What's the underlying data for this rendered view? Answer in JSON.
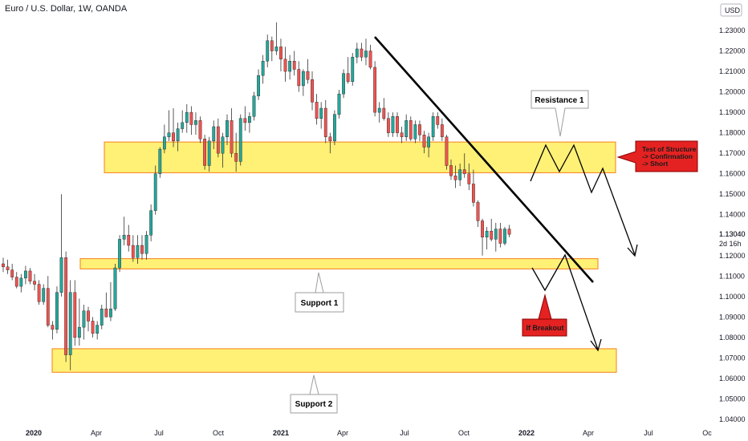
{
  "header": {
    "title": "Euro / U.S. Dollar, 1W, OANDA",
    "currency": "USD"
  },
  "chart_data": {
    "type": "candlestick",
    "title": "Euro / U.S. Dollar, 1W, OANDA",
    "y_ticks": [
      "1.23000",
      "1.22000",
      "1.21000",
      "1.20000",
      "1.19000",
      "1.18000",
      "1.17000",
      "1.16000",
      "1.15000",
      "1.14000",
      "1.13040",
      "1.12000",
      "1.11000",
      "1.10000",
      "1.09000",
      "1.08000",
      "1.07000",
      "1.06000",
      "1.05000",
      "1.04000"
    ],
    "y_tick_values": [
      1.23,
      1.22,
      1.21,
      1.2,
      1.19,
      1.18,
      1.17,
      1.16,
      1.15,
      1.14,
      1.1304,
      1.12,
      1.11,
      1.1,
      1.09,
      1.08,
      1.07,
      1.06,
      1.05,
      1.04
    ],
    "x_ticks": [
      {
        "label": "2020",
        "bold": true
      },
      {
        "label": "Apr",
        "bold": false
      },
      {
        "label": "Jul",
        "bold": false
      },
      {
        "label": "Oct",
        "bold": false
      },
      {
        "label": "2021",
        "bold": true
      },
      {
        "label": "Apr",
        "bold": false
      },
      {
        "label": "Jul",
        "bold": false
      },
      {
        "label": "Oct",
        "bold": false
      },
      {
        "label": "2022",
        "bold": true
      },
      {
        "label": "Apr",
        "bold": false
      },
      {
        "label": "Jul",
        "bold": false
      },
      {
        "label": "Oc",
        "bold": false
      }
    ],
    "ylim": [
      1.04,
      1.236
    ],
    "last_price": "1.13040",
    "countdown": "2d 16h",
    "zones": [
      {
        "name": "resistance-zone",
        "y_top": 1.1755,
        "y_bottom": 1.1605
      },
      {
        "name": "support-1-zone",
        "y_top": 1.1185,
        "y_bottom": 1.1135
      },
      {
        "name": "support-2-zone",
        "y_top": 1.0745,
        "y_bottom": 1.063
      }
    ],
    "annotations": {
      "resistance_1": "Resistance 1",
      "support_1": "Support 1",
      "support_2": "Support 2",
      "test_structure": [
        "Test of Structure",
        "-> Confirmation",
        "-> Short"
      ],
      "if_breakout": "If Breakout"
    },
    "colors": {
      "up": "#26a69a",
      "down": "#ef5350",
      "zone_fill": "#fff176",
      "zone_border": "#f57f17",
      "trendline": "#000000",
      "callout_red": "#e52222"
    },
    "candles": [
      [
        1.116,
        1.119,
        1.112,
        1.1145
      ],
      [
        1.1145,
        1.118,
        1.111,
        1.113
      ],
      [
        1.113,
        1.116,
        1.108,
        1.1095
      ],
      [
        1.1095,
        1.112,
        1.104,
        1.105
      ],
      [
        1.105,
        1.111,
        1.102,
        1.109
      ],
      [
        1.109,
        1.115,
        1.106,
        1.1125
      ],
      [
        1.1125,
        1.114,
        1.106,
        1.1075
      ],
      [
        1.1075,
        1.111,
        1.103,
        1.106
      ],
      [
        1.106,
        1.108,
        1.096,
        1.0975
      ],
      [
        1.0975,
        1.106,
        1.096,
        1.104
      ],
      [
        1.104,
        1.11,
        1.085,
        1.086
      ],
      [
        1.086,
        1.088,
        1.079,
        1.084
      ],
      [
        1.084,
        1.105,
        1.082,
        1.102
      ],
      [
        1.102,
        1.15,
        1.1,
        1.119
      ],
      [
        1.119,
        1.122,
        1.068,
        1.0715
      ],
      [
        1.0715,
        1.108,
        1.064,
        1.102
      ],
      [
        1.102,
        1.108,
        1.076,
        1.08
      ],
      [
        1.08,
        1.099,
        1.076,
        1.085
      ],
      [
        1.085,
        1.096,
        1.079,
        1.093
      ],
      [
        1.093,
        1.095,
        1.083,
        1.088
      ],
      [
        1.088,
        1.09,
        1.08,
        1.082
      ],
      [
        1.082,
        1.088,
        1.079,
        1.086
      ],
      [
        1.086,
        1.096,
        1.084,
        1.094
      ],
      [
        1.094,
        1.102,
        1.09,
        1.09
      ],
      [
        1.09,
        1.107,
        1.088,
        1.094
      ],
      [
        1.094,
        1.116,
        1.093,
        1.114
      ],
      [
        1.114,
        1.13,
        1.112,
        1.128
      ],
      [
        1.128,
        1.139,
        1.125,
        1.13
      ],
      [
        1.13,
        1.135,
        1.122,
        1.125
      ],
      [
        1.125,
        1.13,
        1.117,
        1.119
      ],
      [
        1.119,
        1.13,
        1.116,
        1.125
      ],
      [
        1.125,
        1.13,
        1.118,
        1.121
      ],
      [
        1.121,
        1.132,
        1.118,
        1.13
      ],
      [
        1.13,
        1.145,
        1.127,
        1.142
      ],
      [
        1.142,
        1.164,
        1.14,
        1.16
      ],
      [
        1.16,
        1.173,
        1.158,
        1.172
      ],
      [
        1.172,
        1.184,
        1.17,
        1.178
      ],
      [
        1.178,
        1.191,
        1.176,
        1.18
      ],
      [
        1.18,
        1.192,
        1.173,
        1.176
      ],
      [
        1.176,
        1.185,
        1.171,
        1.182
      ],
      [
        1.182,
        1.191,
        1.18,
        1.185
      ],
      [
        1.185,
        1.194,
        1.18,
        1.19
      ],
      [
        1.19,
        1.193,
        1.179,
        1.184
      ],
      [
        1.184,
        1.19,
        1.179,
        1.186
      ],
      [
        1.186,
        1.188,
        1.175,
        1.177
      ],
      [
        1.177,
        1.179,
        1.162,
        1.164
      ],
      [
        1.164,
        1.178,
        1.161,
        1.176
      ],
      [
        1.176,
        1.186,
        1.172,
        1.183
      ],
      [
        1.183,
        1.187,
        1.168,
        1.17
      ],
      [
        1.17,
        1.18,
        1.163,
        1.178
      ],
      [
        1.178,
        1.189,
        1.174,
        1.186
      ],
      [
        1.186,
        1.192,
        1.168,
        1.17
      ],
      [
        1.17,
        1.18,
        1.161,
        1.166
      ],
      [
        1.166,
        1.189,
        1.164,
        1.187
      ],
      [
        1.187,
        1.193,
        1.181,
        1.185
      ],
      [
        1.185,
        1.19,
        1.18,
        1.188
      ],
      [
        1.188,
        1.2,
        1.186,
        1.198
      ],
      [
        1.198,
        1.211,
        1.196,
        1.208
      ],
      [
        1.208,
        1.218,
        1.204,
        1.215
      ],
      [
        1.215,
        1.228,
        1.212,
        1.225
      ],
      [
        1.225,
        1.227,
        1.215,
        1.22
      ],
      [
        1.22,
        1.234,
        1.218,
        1.222
      ],
      [
        1.222,
        1.226,
        1.21,
        1.216
      ],
      [
        1.216,
        1.222,
        1.205,
        1.21
      ],
      [
        1.21,
        1.218,
        1.206,
        1.215
      ],
      [
        1.215,
        1.22,
        1.208,
        1.211
      ],
      [
        1.211,
        1.215,
        1.2,
        1.203
      ],
      [
        1.203,
        1.211,
        1.198,
        1.21
      ],
      [
        1.21,
        1.216,
        1.204,
        1.206
      ],
      [
        1.206,
        1.21,
        1.191,
        1.195
      ],
      [
        1.195,
        1.199,
        1.184,
        1.187
      ],
      [
        1.187,
        1.195,
        1.182,
        1.192
      ],
      [
        1.192,
        1.196,
        1.175,
        1.178
      ],
      [
        1.178,
        1.18,
        1.17,
        1.176
      ],
      [
        1.176,
        1.191,
        1.174,
        1.189
      ],
      [
        1.189,
        1.201,
        1.187,
        1.199
      ],
      [
        1.199,
        1.211,
        1.197,
        1.209
      ],
      [
        1.209,
        1.217,
        1.204,
        1.205
      ],
      [
        1.205,
        1.219,
        1.203,
        1.217
      ],
      [
        1.217,
        1.224,
        1.214,
        1.221
      ],
      [
        1.221,
        1.224,
        1.215,
        1.217
      ],
      [
        1.217,
        1.226,
        1.213,
        1.22
      ],
      [
        1.22,
        1.223,
        1.211,
        1.212
      ],
      [
        1.212,
        1.215,
        1.188,
        1.19
      ],
      [
        1.19,
        1.195,
        1.185,
        1.192
      ],
      [
        1.192,
        1.197,
        1.186,
        1.187
      ],
      [
        1.187,
        1.19,
        1.178,
        1.18
      ],
      [
        1.18,
        1.19,
        1.178,
        1.188
      ],
      [
        1.188,
        1.19,
        1.178,
        1.18
      ],
      [
        1.18,
        1.183,
        1.175,
        1.178
      ],
      [
        1.178,
        1.189,
        1.176,
        1.186
      ],
      [
        1.186,
        1.188,
        1.176,
        1.177
      ],
      [
        1.177,
        1.186,
        1.175,
        1.184
      ],
      [
        1.184,
        1.186,
        1.176,
        1.179
      ],
      [
        1.179,
        1.181,
        1.17,
        1.173
      ],
      [
        1.173,
        1.18,
        1.168,
        1.178
      ],
      [
        1.178,
        1.19,
        1.176,
        1.188
      ],
      [
        1.188,
        1.19,
        1.182,
        1.184
      ],
      [
        1.184,
        1.187,
        1.176,
        1.178
      ],
      [
        1.178,
        1.179,
        1.162,
        1.164
      ],
      [
        1.164,
        1.167,
        1.157,
        1.159
      ],
      [
        1.159,
        1.164,
        1.153,
        1.157
      ],
      [
        1.157,
        1.165,
        1.154,
        1.162
      ],
      [
        1.162,
        1.17,
        1.158,
        1.16
      ],
      [
        1.16,
        1.165,
        1.152,
        1.155
      ],
      [
        1.155,
        1.162,
        1.144,
        1.146
      ],
      [
        1.146,
        1.147,
        1.134,
        1.137
      ],
      [
        1.137,
        1.138,
        1.12,
        1.129
      ],
      [
        1.129,
        1.134,
        1.123,
        1.132
      ],
      [
        1.132,
        1.138,
        1.127,
        1.128
      ],
      [
        1.128,
        1.136,
        1.122,
        1.133
      ],
      [
        1.133,
        1.136,
        1.124,
        1.126
      ],
      [
        1.126,
        1.134,
        1.125,
        1.133
      ],
      [
        1.133,
        1.135,
        1.129,
        1.1304
      ]
    ]
  }
}
